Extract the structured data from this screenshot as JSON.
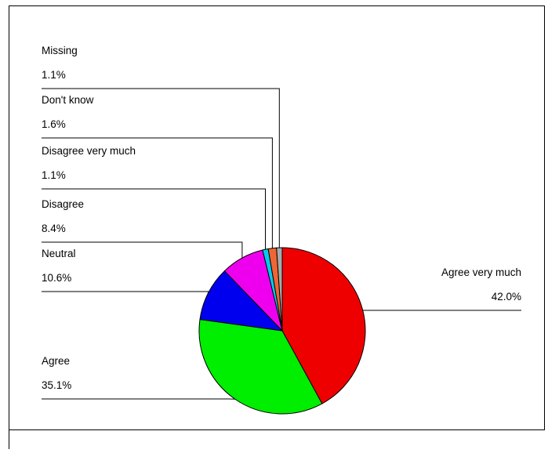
{
  "chart_data": {
    "type": "pie",
    "title": "",
    "slices": [
      {
        "label": "Agree very much",
        "value": 42.0,
        "display": "42.0%",
        "color": "#ee0000"
      },
      {
        "label": "Agree",
        "value": 35.1,
        "display": "35.1%",
        "color": "#00ee00"
      },
      {
        "label": "Neutral",
        "value": 10.6,
        "display": "10.6%",
        "color": "#0000ee"
      },
      {
        "label": "Disagree",
        "value": 8.4,
        "display": "8.4%",
        "color": "#ee00ee"
      },
      {
        "label": "Disagree very much",
        "value": 1.1,
        "display": "1.1%",
        "color": "#00ccee"
      },
      {
        "label": "Don't know",
        "value": 1.6,
        "display": "1.6%",
        "color": "#ee6633"
      },
      {
        "label": "Missing",
        "value": 1.1,
        "display": "1.1%",
        "color": "#aaaaaa"
      }
    ],
    "start_angle": "12 o'clock",
    "direction": "clockwise",
    "legend": "callout labels"
  }
}
